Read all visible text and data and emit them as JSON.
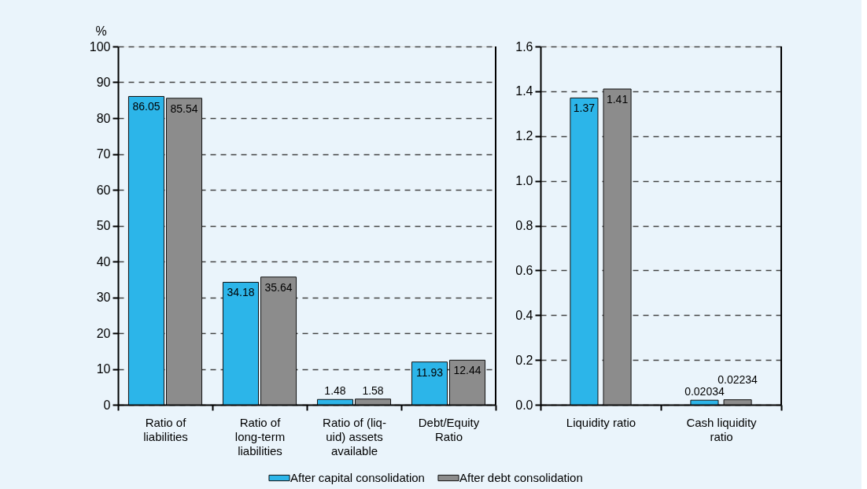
{
  "chart_data": [
    {
      "type": "bar",
      "ylabel": "%",
      "categories": [
        "Ratio of\nliabilities",
        "Ratio of\nlong-term\nliabilities",
        "Ratio of (liq-\nuid) assets\navailable",
        "Debt/Equity\nRatio"
      ],
      "series": [
        {
          "name": "After capital consolidation",
          "color": "#2cb5e9",
          "values": [
            86.05,
            34.18,
            1.48,
            11.93
          ]
        },
        {
          "name": "After debt consolidation",
          "color": "#8c8c8c",
          "values": [
            85.54,
            35.64,
            1.58,
            12.44
          ]
        }
      ],
      "ylim": [
        0,
        100
      ],
      "yticks": [
        0,
        10,
        20,
        30,
        40,
        50,
        60,
        70,
        80,
        90,
        100
      ],
      "grid": "y",
      "data_labels": true,
      "legend": "bottom"
    },
    {
      "type": "bar",
      "categories": [
        "Liquidity ratio",
        "Cash liquidity\nratio"
      ],
      "series": [
        {
          "name": "After capital consolidation",
          "color": "#2cb5e9",
          "values": [
            1.37,
            0.02034
          ]
        },
        {
          "name": "After debt consolidation",
          "color": "#8c8c8c",
          "values": [
            1.41,
            0.02234
          ]
        }
      ],
      "ylim": [
        0,
        1.6
      ],
      "yticks": [
        {
          "value": 0,
          "label": "0.0"
        },
        0.2,
        0.4,
        0.6,
        0.8,
        {
          "value": 1,
          "label": "1.0"
        },
        1.2,
        1.4,
        1.6
      ],
      "grid": "y",
      "data_labels": true,
      "legend": "bottom"
    }
  ]
}
